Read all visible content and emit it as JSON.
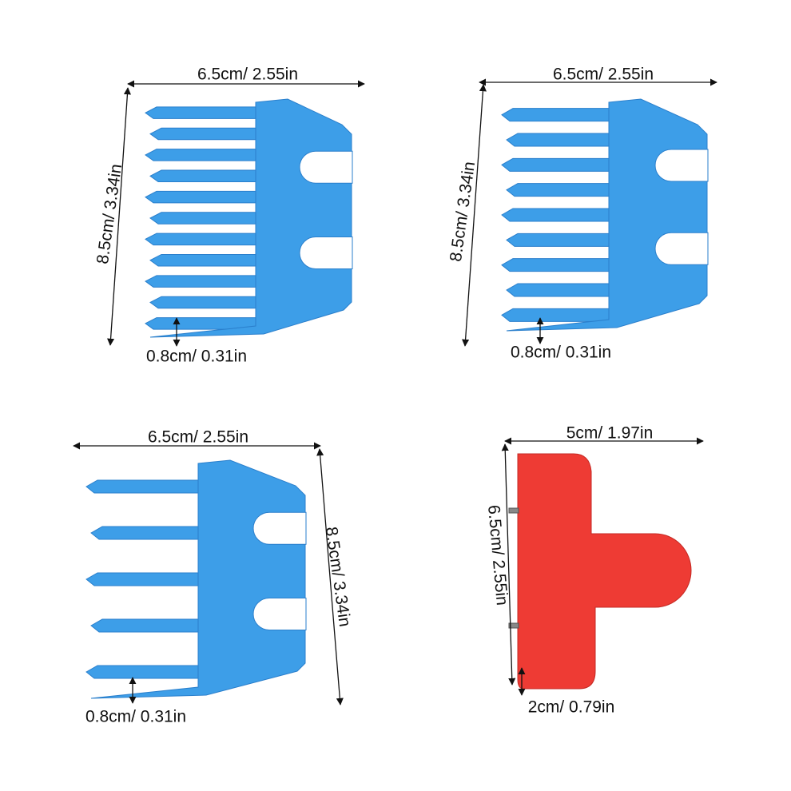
{
  "panels": [
    {
      "width_label": "6.5cm/ 2.55in",
      "height_label": "8.5cm/ 3.34in",
      "tooth_label": "0.8cm/ 0.31in"
    },
    {
      "width_label": "6.5cm/ 2.55in",
      "height_label": "8.5cm/ 3.34in",
      "tooth_label": "0.8cm/ 0.31in"
    },
    {
      "width_label": "6.5cm/ 2.55in",
      "height_label": "8.5cm/ 3.34in",
      "tooth_label": "0.8cm/ 0.31in"
    },
    {
      "width_label": "5cm/ 1.97in",
      "height_label": "6.5cm/ 2.55in",
      "tooth_label": "2cm/ 0.79in"
    }
  ]
}
